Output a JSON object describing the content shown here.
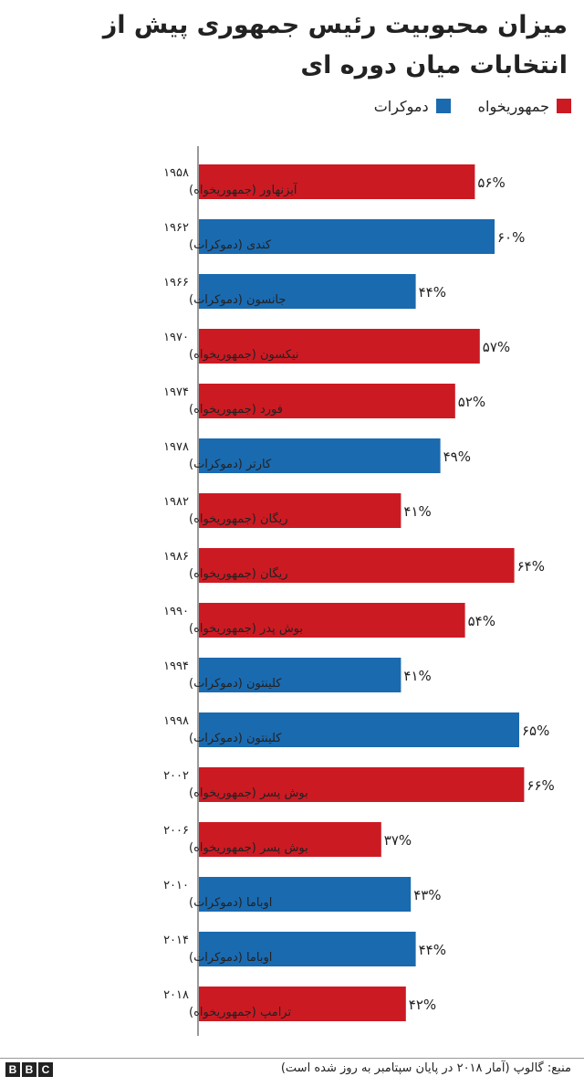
{
  "chart_data": {
    "type": "bar",
    "orientation": "horizontal",
    "title": "میزان محبوبیت رئیس جمهوری پیش از انتخابات میان دوره ای",
    "legend": [
      {
        "name": "جمهوریخواه",
        "color": "#cc1a23"
      },
      {
        "name": "دموکرات",
        "color": "#1a6ab0"
      }
    ],
    "legend_placement": "top-right",
    "xlim": [
      0,
      100
    ],
    "grid": false,
    "categories": [
      {
        "year": "۱۹۵۸",
        "name": "آیزنهاور (جمهوریخواه)"
      },
      {
        "year": "۱۹۶۲",
        "name": "کندی (دموکرات)"
      },
      {
        "year": "۱۹۶۶",
        "name": "جانسون (دموکرات)"
      },
      {
        "year": "۱۹۷۰",
        "name": "نیکسون (جمهوریخواه)"
      },
      {
        "year": "۱۹۷۴",
        "name": "فورد (جمهوریخواه)"
      },
      {
        "year": "۱۹۷۸",
        "name": "کارتر (دموکرات)"
      },
      {
        "year": "۱۹۸۲",
        "name": "ریگان (جمهوریخواه)"
      },
      {
        "year": "۱۹۸۶",
        "name": "ریگان (جمهوریخواه)"
      },
      {
        "year": "۱۹۹۰",
        "name": "بوش پدر (جمهوریخواه)"
      },
      {
        "year": "۱۹۹۴",
        "name": "کلینتون (دموکرات)"
      },
      {
        "year": "۱۹۹۸",
        "name": "کلینتون (دموکرات)"
      },
      {
        "year": "۲۰۰۲",
        "name": "بوش پسر (جمهوریخواه)"
      },
      {
        "year": "۲۰۰۶",
        "name": "بوش پسر (جمهوریخواه)"
      },
      {
        "year": "۲۰۱۰",
        "name": "اوباما (دموکرات)"
      },
      {
        "year": "۲۰۱۴",
        "name": "اوباما (دموکرات)"
      },
      {
        "year": "۲۰۱۸",
        "name": "ترامپ (جمهوریخواه)"
      }
    ],
    "values": [
      56,
      60,
      44,
      57,
      52,
      49,
      41,
      64,
      54,
      41,
      65,
      66,
      37,
      43,
      44,
      42
    ],
    "value_labels": [
      "۵۶%",
      "۶۰%",
      "۴۴%",
      "۵۷%",
      "۵۲%",
      "۴۹%",
      "۴۱%",
      "۶۴%",
      "۵۴%",
      "۴۱%",
      "۶۵%",
      "۶۶%",
      "۳۷%",
      "۴۳%",
      "۴۴%",
      "۴۲%"
    ],
    "party": [
      "rep",
      "dem",
      "dem",
      "rep",
      "rep",
      "dem",
      "rep",
      "rep",
      "rep",
      "dem",
      "dem",
      "rep",
      "rep",
      "dem",
      "dem",
      "rep"
    ]
  },
  "colors": {
    "rep": "#cc1a23",
    "dem": "#1a6ab0",
    "axis": "#333333"
  },
  "source": "منبع: گالوپ (آمار ۲۰۱۸ در پایان سپتامبر به روز شده است)",
  "logo": [
    "B",
    "B",
    "C"
  ]
}
